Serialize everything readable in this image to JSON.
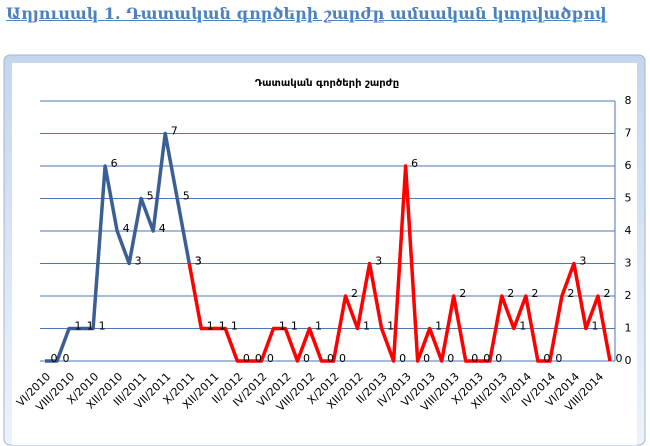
{
  "header": {
    "title": "Աղյուսակ 1. Դատական գործերի շարժը ամսական կտրվածքով"
  },
  "chart_data": {
    "type": "line",
    "title": "Դատական գործերի շարժը",
    "categories": [
      "VI/2010",
      null,
      "VIII/2010",
      null,
      "X/2010",
      null,
      "XII/2010",
      null,
      "III/2011",
      null,
      "VII/2011",
      null,
      "X/2011",
      null,
      "XII/2011",
      null,
      "II/2012",
      null,
      "IV/2012",
      null,
      "VI/2012",
      null,
      "VIII/2012",
      null,
      "X/2012",
      null,
      "XII/2012",
      null,
      "II/2013",
      null,
      "IV/2013",
      null,
      "VI/2013",
      null,
      "VIII/2013",
      null,
      "X/2013",
      null,
      "XII/2013",
      null,
      "II/2014",
      null,
      "IV/2014",
      null,
      "VI/2014",
      null,
      "VIII/2014",
      null
    ],
    "series": [
      {
        "color": "#3b5f94",
        "values": [
          0,
          0,
          1,
          1,
          1,
          6,
          4,
          3,
          5,
          4,
          7,
          5,
          3,
          null,
          null,
          null,
          null,
          null,
          null,
          null,
          null,
          null,
          null,
          null,
          null,
          null,
          null,
          null,
          null,
          null,
          null,
          null,
          null,
          null,
          null,
          null,
          null,
          null,
          null,
          null,
          null,
          null,
          null,
          null,
          null,
          null,
          null,
          null
        ]
      },
      {
        "color": "#ff0000",
        "values": [
          null,
          null,
          null,
          null,
          null,
          null,
          null,
          null,
          null,
          null,
          null,
          null,
          3,
          1,
          1,
          1,
          0,
          0,
          0,
          1,
          1,
          0,
          1,
          0,
          0,
          2,
          1,
          3,
          1,
          0,
          6,
          0,
          1,
          0,
          2,
          0,
          0,
          0,
          2,
          1,
          2,
          0,
          0,
          2,
          3,
          1,
          2,
          0
        ]
      }
    ],
    "ylim": [
      0,
      8
    ],
    "yticks": [
      0,
      1,
      2,
      3,
      4,
      5,
      6,
      7,
      8
    ],
    "grid": true,
    "y_axis_side": "right"
  }
}
